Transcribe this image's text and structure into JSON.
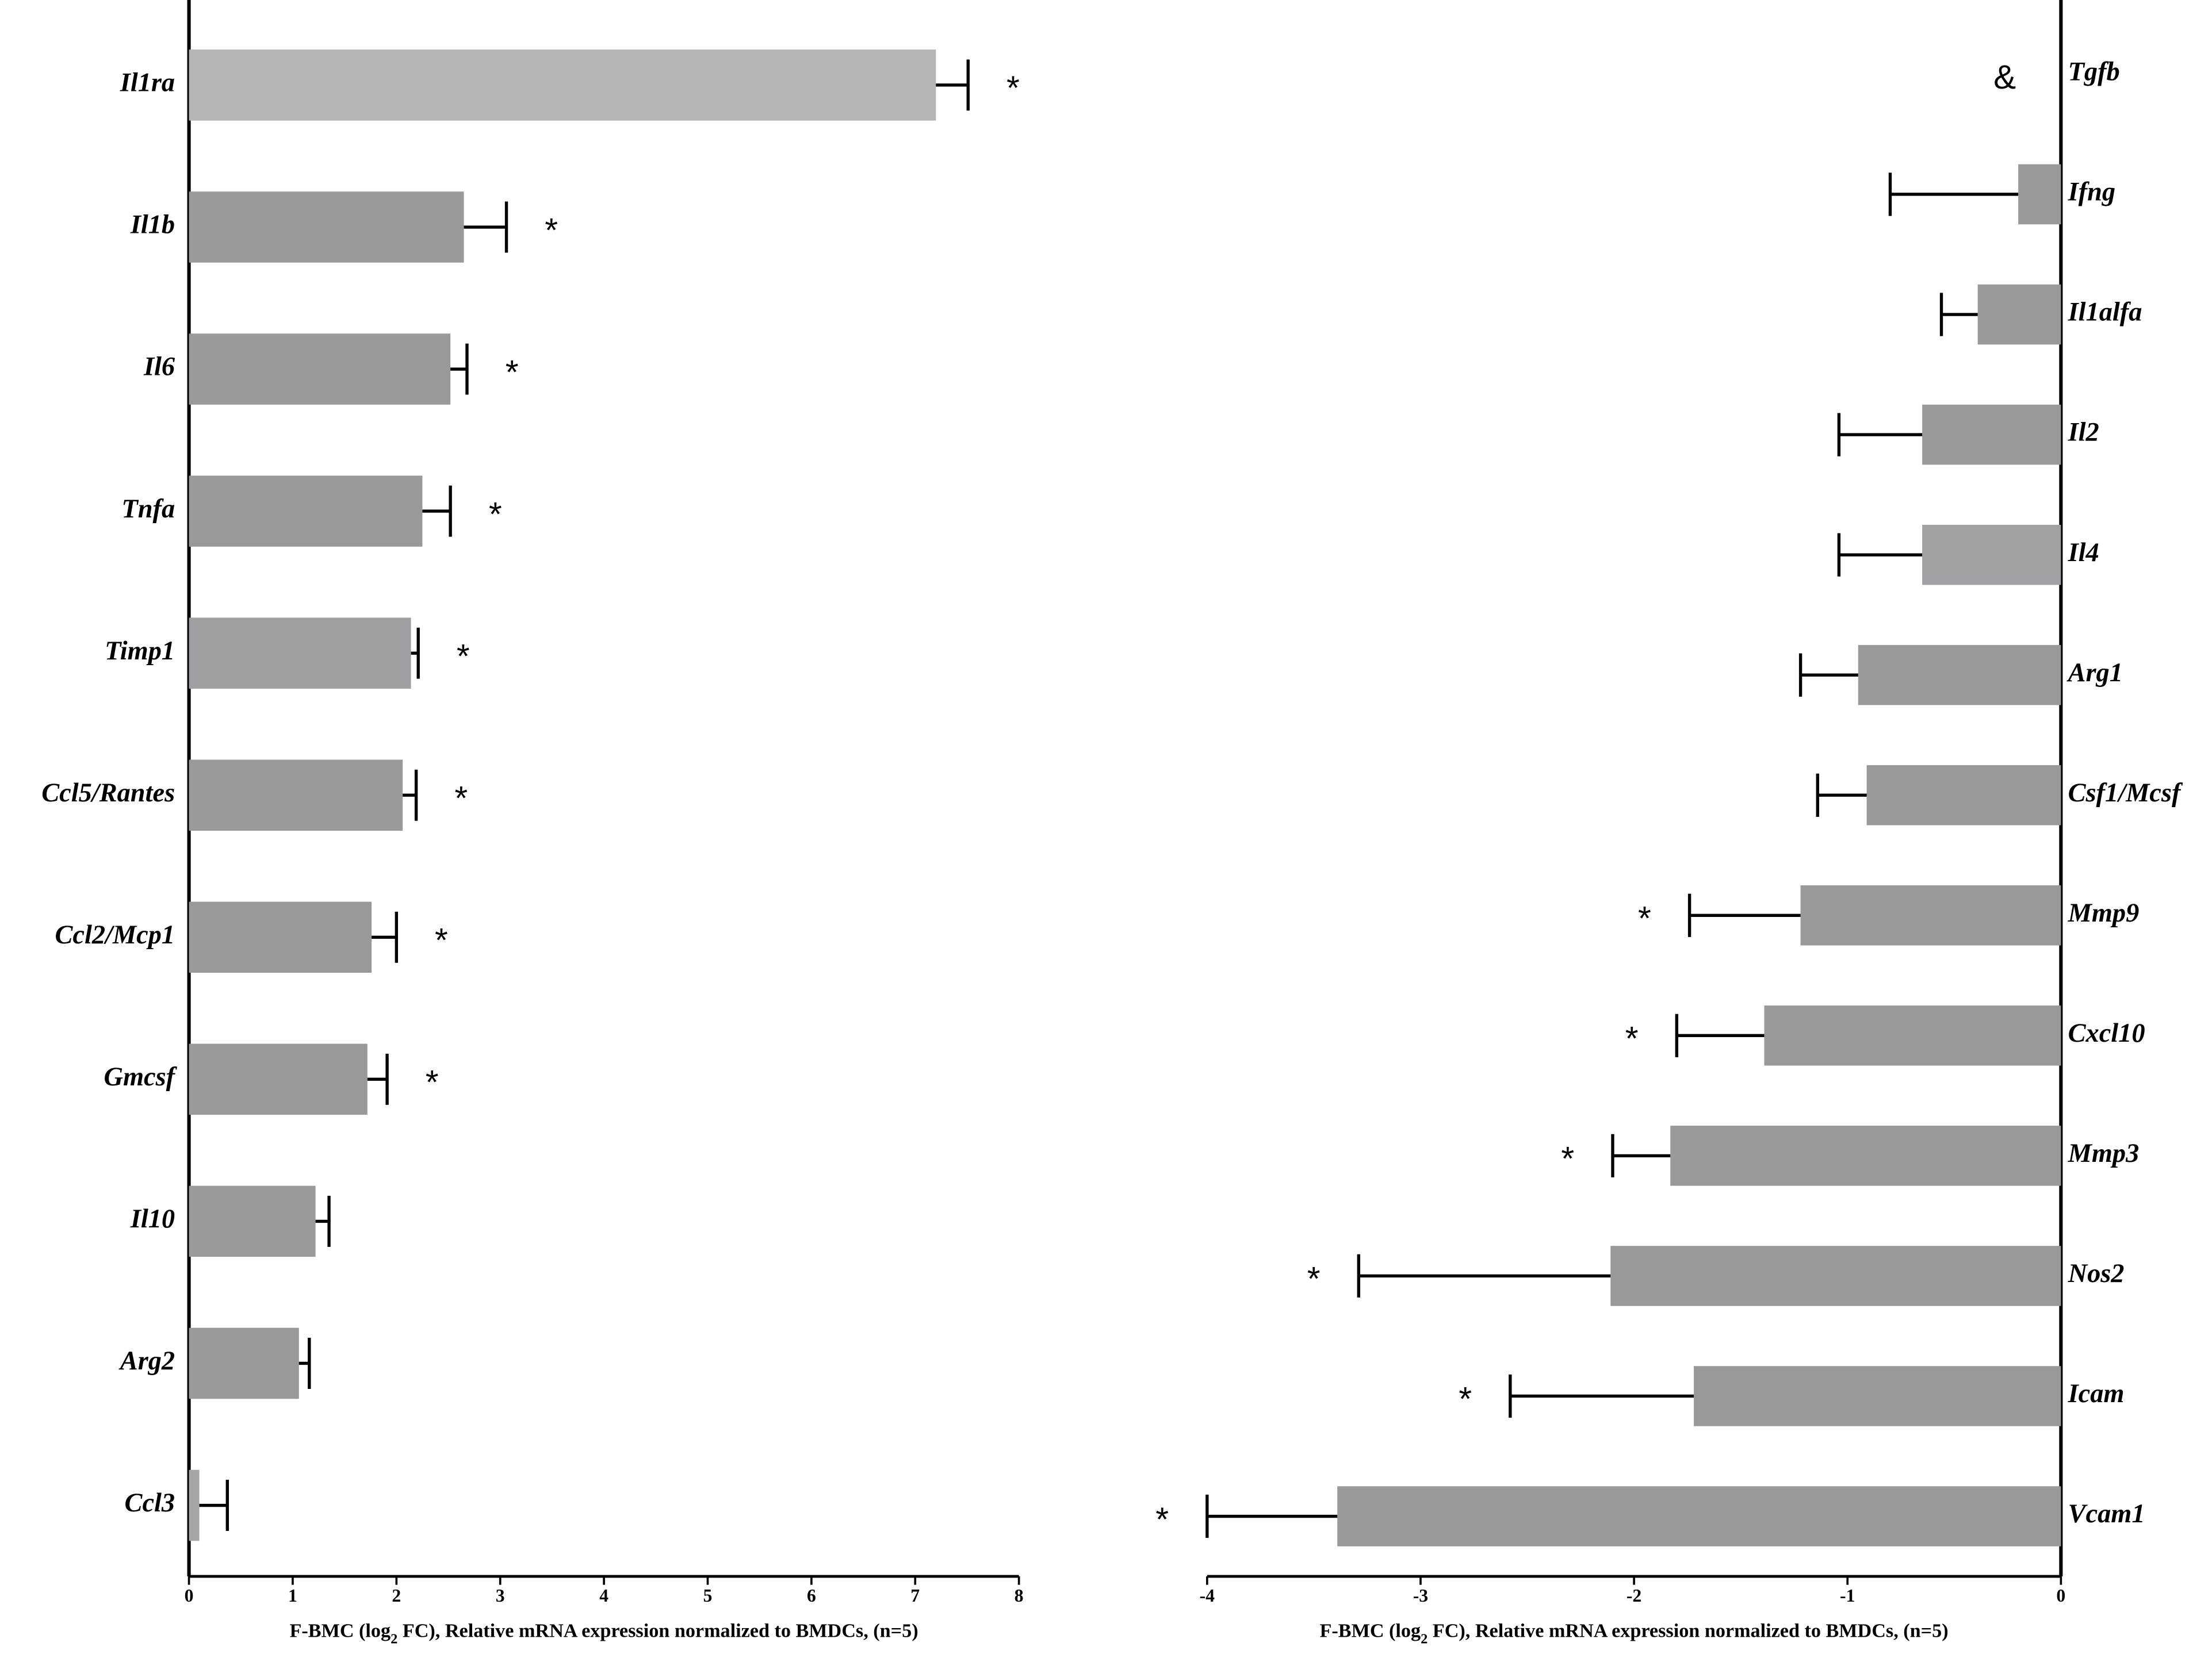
{
  "chart_data": [
    {
      "type": "bar",
      "orientation": "horizontal",
      "yaxis_side": "left",
      "categories": [
        "Il1ra",
        "Il1b",
        "Il6",
        "Tnfa",
        "Timp1",
        "Ccl5/Rantes",
        "Ccl2/Mcp1",
        "Gmcsf",
        "Il10",
        "Arg2",
        "Ccl3"
      ],
      "values": [
        7.2,
        2.65,
        2.52,
        2.25,
        2.14,
        2.06,
        1.76,
        1.72,
        1.22,
        1.06,
        0.1
      ],
      "errors": [
        0.31,
        0.41,
        0.16,
        0.27,
        0.07,
        0.13,
        0.24,
        0.19,
        0.13,
        0.1,
        0.27
      ],
      "colors": [
        "#b4b4b4",
        "#999999",
        "#999999",
        "#999999",
        "#9e9ea3",
        "#999999",
        "#999999",
        "#999999",
        "#999999",
        "#999999",
        "#a6a6a6"
      ],
      "annotations": [
        "*",
        "*",
        "*",
        "*",
        "*",
        "*",
        "*",
        "*",
        null,
        null,
        null
      ],
      "xlim": [
        0,
        8
      ],
      "xticks": [
        0,
        1,
        2,
        3,
        4,
        5,
        6,
        7,
        8
      ],
      "xlabel": [
        "F-BMC (log",
        "2",
        " FC), Relative mRNA expression normalized to BMDCs, (n=5)"
      ]
    },
    {
      "type": "bar",
      "orientation": "horizontal",
      "yaxis_side": "right",
      "categories": [
        "Tgfb",
        "Ifng",
        "Il1alfa",
        "Il2",
        "Il4",
        "Arg1",
        "Csf1/Mcsf",
        "Mmp9",
        "Cxcl10",
        "Mmp3",
        "Nos2",
        "Icam",
        "Vcam1"
      ],
      "values": [
        null,
        -0.2,
        -0.39,
        -0.65,
        -0.65,
        -0.95,
        -0.91,
        -1.22,
        -1.39,
        -1.83,
        -2.11,
        -1.72,
        -3.39
      ],
      "errors": [
        null,
        0.6,
        0.17,
        0.39,
        0.39,
        0.27,
        0.23,
        0.52,
        0.41,
        0.27,
        1.18,
        0.86,
        0.61
      ],
      "colors": [
        "#999999",
        "#999999",
        "#999999",
        "#999999",
        "#a0a0a5",
        "#999999",
        "#999999",
        "#999999",
        "#999999",
        "#999999",
        "#999999",
        "#999999",
        "#999999"
      ],
      "annotations": [
        "&",
        null,
        null,
        null,
        null,
        null,
        null,
        "*",
        "*",
        "*",
        "*",
        "*",
        "*"
      ],
      "xlim": [
        -4,
        0
      ],
      "xticks": [
        -4,
        -3,
        -2,
        -1,
        0
      ],
      "xlabel": [
        "F-BMC (log",
        "2",
        " FC), Relative mRNA expression normalized to BMDCs, (n=5)"
      ]
    }
  ]
}
